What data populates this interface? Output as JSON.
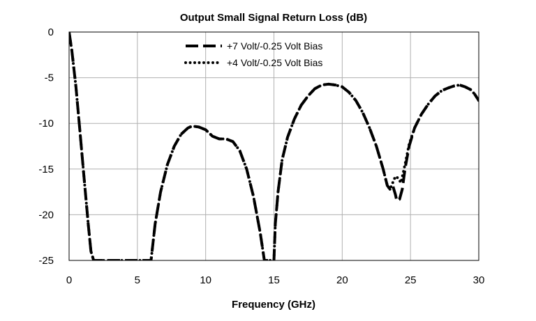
{
  "chart_data": {
    "type": "line",
    "title": "Output Small Signal Return Loss (dB)",
    "xlabel": "Frequency (GHz)",
    "ylabel": "",
    "xlim": [
      0,
      30
    ],
    "ylim": [
      -25,
      0
    ],
    "xticks": [
      0,
      5,
      10,
      15,
      20,
      25,
      30
    ],
    "yticks": [
      0,
      -5,
      -10,
      -15,
      -20,
      -25
    ],
    "grid": true,
    "legend_position": "top-center",
    "series": [
      {
        "name": "+7 Volt/-0.25 Volt Bias",
        "style": "dashed",
        "color": "#000000",
        "x": [
          0,
          0.2,
          0.5,
          0.8,
          1.1,
          1.4,
          1.6,
          1.8,
          6.0,
          6.3,
          6.7,
          7.2,
          7.7,
          8.2,
          8.7,
          9.0,
          9.5,
          10.0,
          10.5,
          11.0,
          11.5,
          12.0,
          12.5,
          13.0,
          13.5,
          14.0,
          14.3,
          14.6,
          14.9,
          15.0,
          15.1,
          15.3,
          15.6,
          16.0,
          16.5,
          17.0,
          17.5,
          18.0,
          18.5,
          19.0,
          19.5,
          20.0,
          20.5,
          21.0,
          21.5,
          22.0,
          22.5,
          23.0,
          23.3,
          23.5,
          23.7,
          23.9,
          24.0,
          24.2,
          24.4,
          24.6,
          24.9,
          25.3,
          25.8,
          26.3,
          26.8,
          27.3,
          27.8,
          28.2,
          28.6,
          29.0,
          29.4,
          29.7,
          30.0
        ],
        "y": [
          0,
          -2,
          -6,
          -11,
          -16,
          -21,
          -24,
          -25,
          -25,
          -21,
          -17.5,
          -14.5,
          -12.5,
          -11.2,
          -10.5,
          -10.3,
          -10.4,
          -10.7,
          -11.4,
          -11.7,
          -11.7,
          -12.0,
          -13.0,
          -15.0,
          -18.0,
          -22.0,
          -25.0,
          -25.0,
          -25.0,
          -25.0,
          -21.0,
          -17.5,
          -14.0,
          -11.5,
          -9.5,
          -8.0,
          -7.0,
          -6.2,
          -5.8,
          -5.7,
          -5.8,
          -6.0,
          -6.6,
          -7.5,
          -8.8,
          -10.5,
          -12.5,
          -15.0,
          -16.8,
          -17.2,
          -16.8,
          -17.8,
          -18.5,
          -18.3,
          -17.2,
          -15.0,
          -12.5,
          -10.5,
          -9.0,
          -7.9,
          -7.0,
          -6.4,
          -6.1,
          -5.9,
          -5.8,
          -6.0,
          -6.3,
          -6.8,
          -7.5
        ]
      },
      {
        "name": "+4 Volt/-0.25 Volt Bias",
        "style": "dotted",
        "color": "#000000",
        "x": [
          0,
          0.2,
          0.5,
          0.8,
          1.1,
          1.4,
          1.6,
          1.8,
          6.0,
          6.3,
          6.7,
          7.2,
          7.7,
          8.2,
          8.7,
          9.0,
          9.5,
          10.0,
          10.5,
          11.0,
          11.5,
          12.0,
          12.5,
          13.0,
          13.5,
          14.0,
          14.3,
          14.6,
          14.9,
          15.0,
          15.1,
          15.3,
          15.6,
          16.0,
          16.5,
          17.0,
          17.5,
          18.0,
          18.5,
          19.0,
          19.5,
          20.0,
          20.5,
          21.0,
          21.5,
          22.0,
          22.5,
          23.0,
          23.3,
          23.5,
          23.7,
          23.9,
          24.1,
          24.3,
          24.6,
          24.9,
          25.3,
          25.8,
          26.3,
          26.8,
          27.3,
          27.8,
          28.2,
          28.6,
          29.0,
          29.4,
          29.7,
          30.0
        ],
        "y": [
          0,
          -2,
          -6,
          -11,
          -16,
          -21,
          -24,
          -25,
          -25,
          -21,
          -17.5,
          -14.5,
          -12.5,
          -11.2,
          -10.5,
          -10.3,
          -10.4,
          -10.7,
          -11.4,
          -11.7,
          -11.7,
          -12.0,
          -13.0,
          -15.0,
          -18.0,
          -22.0,
          -25.0,
          -25.0,
          -25.0,
          -25.0,
          -21.0,
          -17.5,
          -14.0,
          -11.5,
          -9.5,
          -8.0,
          -7.0,
          -6.2,
          -5.8,
          -5.7,
          -5.8,
          -6.0,
          -6.6,
          -7.5,
          -8.8,
          -10.5,
          -12.5,
          -15.0,
          -16.8,
          -17.2,
          -16.5,
          -15.8,
          -16.0,
          -16.5,
          -14.5,
          -12.3,
          -10.5,
          -9.0,
          -7.9,
          -7.0,
          -6.4,
          -6.1,
          -5.9,
          -5.8,
          -6.0,
          -6.3,
          -6.8,
          -7.5
        ]
      }
    ]
  }
}
